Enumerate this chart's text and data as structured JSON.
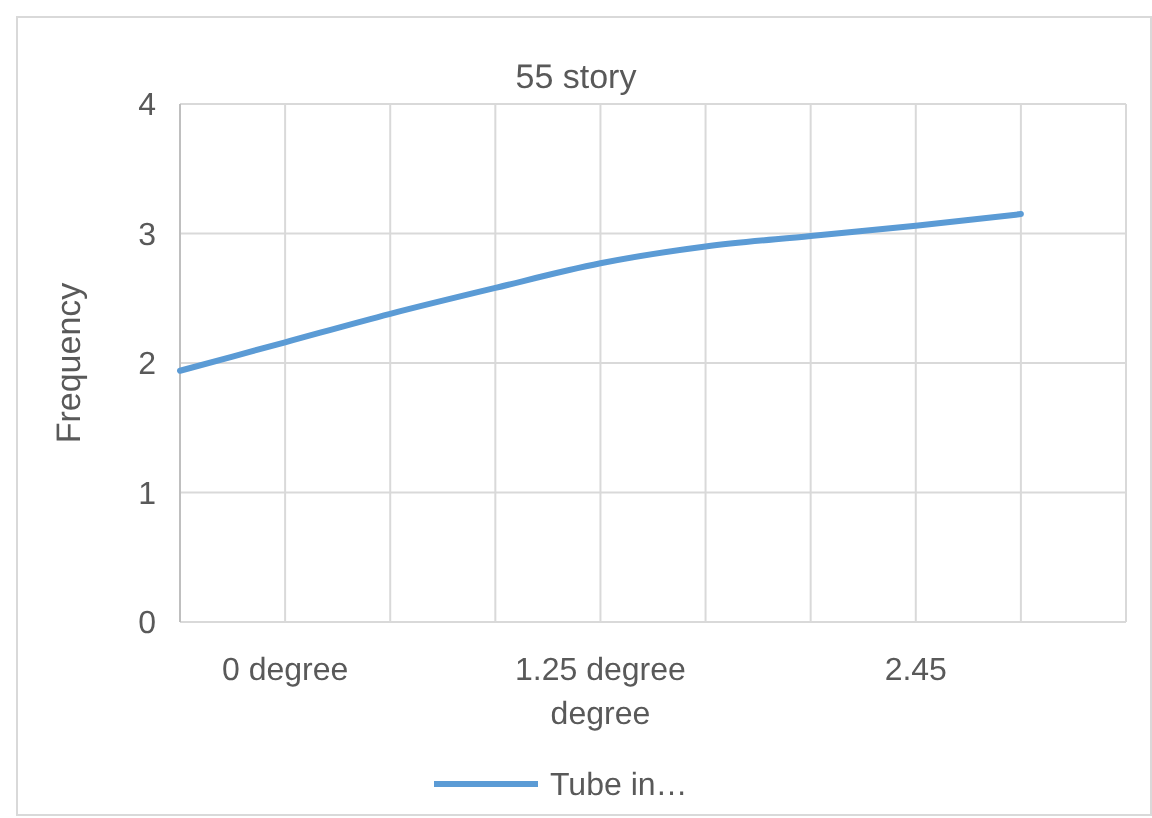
{
  "chart_data": {
    "type": "line",
    "title": "55 story",
    "ylabel": "Frequency",
    "categories": [
      null,
      "0 degree",
      null,
      null,
      "1.25 degree degree",
      null,
      null,
      "2.45",
      null,
      null
    ],
    "series": [
      {
        "name": "Tube in…",
        "color": "#5b9bd5",
        "values": [
          1.94,
          2.16,
          2.38,
          2.58,
          2.77,
          2.9,
          2.98,
          3.06,
          3.15,
          null
        ]
      }
    ],
    "ylim": [
      0,
      4
    ],
    "yticks": [
      0,
      1,
      2,
      3,
      4
    ],
    "grid": true,
    "legend": "bottom",
    "marker": "none",
    "line_style": "solid"
  }
}
